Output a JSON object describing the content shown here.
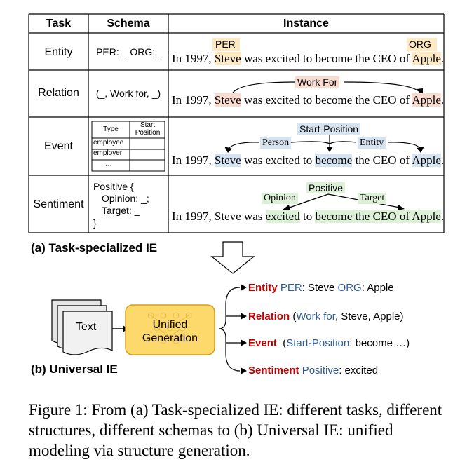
{
  "table": {
    "headers": {
      "task": "Task",
      "schema": "Schema",
      "instance": "Instance"
    },
    "rows": [
      {
        "task": "Entity",
        "schema": "PER: _ ORG:_"
      },
      {
        "task": "Relation",
        "schema": "(_, Work for, _)"
      },
      {
        "task": "Event",
        "mini_table": {
          "h1": "Type",
          "h2": "Start Position",
          "r1": "employee",
          "r2": "employer",
          "r3": "…"
        }
      },
      {
        "task": "Sentiment",
        "schema_lines": [
          "Positive {",
          "Opinion: _;",
          "Target: _",
          "}"
        ]
      }
    ],
    "sentence": {
      "p1": "In 1997, ",
      "steve": "Steve",
      "p2": " was excited to become the CEO of ",
      "apple": "Apple",
      "end": "."
    },
    "sentiment_sentence": {
      "p1": "In 1997, Steve was ",
      "excited": "excited",
      "p2": " to ",
      "become": "become the CEO of Apple",
      "end": "."
    },
    "labels": {
      "per": "PER",
      "org": "ORG",
      "work_for": "Work For",
      "start_position": "Start-Position",
      "person": "Person",
      "entity": "Entity",
      "positive": "Positive",
      "opinion": "Opinion",
      "target": "Target",
      "become": "become"
    }
  },
  "part_a_label": "(a) Task-specialized IE",
  "part_b_label": "(b) Universal IE",
  "doc_label": "Text",
  "gen_label_1": "Unified",
  "gen_label_2": "Generation",
  "outputs": [
    {
      "key": "Entity",
      "a": "PER",
      "b": ": Steve ",
      "c": "ORG",
      "d": ": Apple"
    },
    {
      "key": "Relation",
      "a": "(",
      "b": "Work for",
      "c": ", Steve, Apple)"
    },
    {
      "key": "Event",
      "a": "(",
      "b": "Start-Position",
      "c": ": become …)"
    },
    {
      "key": "Sentiment",
      "a": "Positive",
      "b": ": excited"
    }
  ],
  "caption": "Figure 1: From (a) Task-specialized IE: different tasks, different structures, different schemas to (b) Universal IE: unified modeling via structure generation.",
  "colors": {
    "red": "#c00000",
    "blue": "#2e5c9a",
    "gen_fill": "#fdd86b",
    "gen_stroke": "#d4a017"
  }
}
